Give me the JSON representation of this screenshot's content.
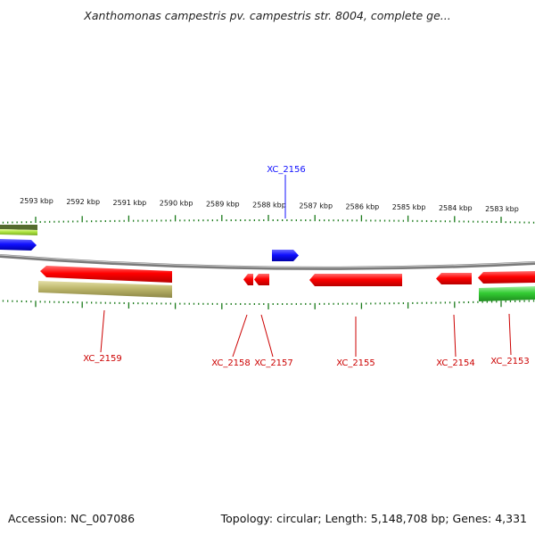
{
  "title": "Xanthomonas campestris pv. campestris str. 8004, complete ge...",
  "accession": "Accession: NC_007086",
  "summary": "Topology: circular; Length: 5,148,708 bp; Genes: 4,331",
  "colors": {
    "forward_gene": "#1010ff",
    "reverse_gene": "#ff0000",
    "backbone": "#888888",
    "ticks": "#1a7a1a",
    "green_feature": "#33cc33",
    "olive_feature": "#bdb76b"
  },
  "ticks": [
    {
      "label": "2593 kbp",
      "kbp": 2593
    },
    {
      "label": "2592 kbp",
      "kbp": 2592
    },
    {
      "label": "2591 kbp",
      "kbp": 2591
    },
    {
      "label": "2590 kbp",
      "kbp": 2590
    },
    {
      "label": "2589 kbp",
      "kbp": 2589
    },
    {
      "label": "2588 kbp",
      "kbp": 2588
    },
    {
      "label": "2587 kbp",
      "kbp": 2587
    },
    {
      "label": "2586 kbp",
      "kbp": 2586
    },
    {
      "label": "2585 kbp",
      "kbp": 2585
    },
    {
      "label": "2584 kbp",
      "kbp": 2584
    },
    {
      "label": "2583 kbp",
      "kbp": 2583
    }
  ],
  "genes": [
    {
      "name": "XC_2156",
      "strand": "+"
    },
    {
      "name": "XC_2159",
      "strand": "-"
    },
    {
      "name": "XC_2158",
      "strand": "-"
    },
    {
      "name": "XC_2157",
      "strand": "-"
    },
    {
      "name": "XC_2155",
      "strand": "-"
    },
    {
      "name": "XC_2154",
      "strand": "-"
    },
    {
      "name": "XC_2153",
      "strand": "-"
    }
  ]
}
